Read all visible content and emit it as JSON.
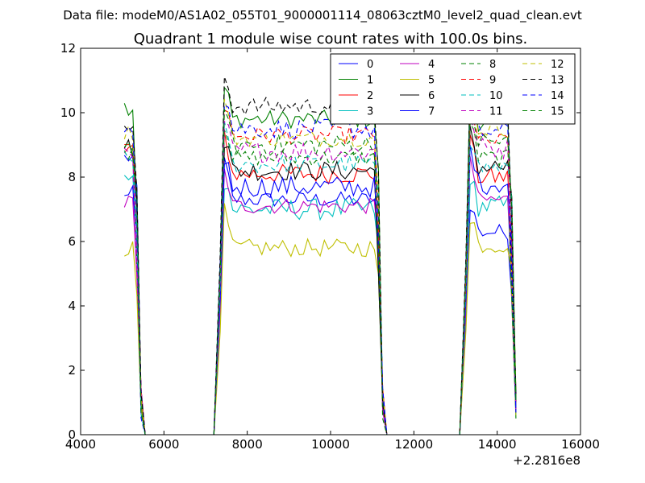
{
  "supertitle": "Data file: modeM0/AS1A02_055T01_9000001114_08063cztM0_level2_quad_clean.evt",
  "chart_data": {
    "type": "line",
    "title": "Quadrant 1 module wise count rates with 100.0s bins.",
    "xlabel": "",
    "ylabel": "",
    "xlim": [
      4000,
      16000
    ],
    "ylim": [
      0,
      12
    ],
    "x_ticks": [
      4000,
      6000,
      8000,
      10000,
      12000,
      14000,
      16000
    ],
    "x_tick_labels": [
      "4000",
      "6000",
      "8000",
      "10000",
      "12000",
      "14000",
      "16000"
    ],
    "y_ticks": [
      0,
      2,
      4,
      6,
      8,
      10,
      12
    ],
    "y_tick_labels": [
      "0",
      "2",
      "4",
      "6",
      "8",
      "10",
      "12"
    ],
    "x_offset_label": "+2.2816e8",
    "legend_position": "top-right",
    "legend_columns": 4,
    "segments": [
      {
        "start": 5050,
        "end": 5250
      },
      {
        "start": 7350,
        "end": 11050
      },
      {
        "start": 13250,
        "end": 14250
      }
    ],
    "series": [
      {
        "name": "0",
        "color": "#0000ff",
        "dash": "solid",
        "levels": [
          8.6,
          7.3,
          6.3
        ]
      },
      {
        "name": "1",
        "color": "#008000",
        "dash": "solid",
        "levels": [
          10.2,
          9.8,
          9.7
        ]
      },
      {
        "name": "2",
        "color": "#ff0000",
        "dash": "solid",
        "levels": [
          8.9,
          8.1,
          8.0
        ]
      },
      {
        "name": "3",
        "color": "#00bfbf",
        "dash": "solid",
        "levels": [
          7.9,
          7.0,
          7.1
        ]
      },
      {
        "name": "4",
        "color": "#bf00bf",
        "dash": "solid",
        "levels": [
          7.2,
          7.1,
          7.3
        ]
      },
      {
        "name": "5",
        "color": "#bfbf00",
        "dash": "solid",
        "levels": [
          5.8,
          5.8,
          5.9
        ]
      },
      {
        "name": "6",
        "color": "#000000",
        "dash": "solid",
        "levels": [
          8.9,
          8.2,
          8.3
        ]
      },
      {
        "name": "7",
        "color": "#0000ff",
        "dash": "solid",
        "levels": [
          7.5,
          7.7,
          7.8
        ]
      },
      {
        "name": "8",
        "color": "#008000",
        "dash": "dashed",
        "levels": [
          8.8,
          8.6,
          8.6
        ]
      },
      {
        "name": "9",
        "color": "#ff0000",
        "dash": "dashed",
        "levels": [
          9.2,
          9.3,
          9.1
        ]
      },
      {
        "name": "10",
        "color": "#00bfbf",
        "dash": "dashed",
        "levels": [
          8.5,
          8.4,
          8.3
        ]
      },
      {
        "name": "11",
        "color": "#bf00bf",
        "dash": "dashed",
        "levels": [
          8.8,
          8.8,
          8.9
        ]
      },
      {
        "name": "12",
        "color": "#bfbf00",
        "dash": "dashed",
        "levels": [
          9.4,
          9.2,
          9.5
        ]
      },
      {
        "name": "13",
        "color": "#000000",
        "dash": "dashed",
        "levels": [
          9.6,
          10.2,
          10.1
        ]
      },
      {
        "name": "14",
        "color": "#0000ff",
        "dash": "dashed",
        "levels": [
          9.3,
          9.5,
          9.4
        ]
      },
      {
        "name": "15",
        "color": "#008000",
        "dash": "dashed",
        "levels": [
          9.0,
          9.0,
          9.1
        ]
      }
    ]
  }
}
